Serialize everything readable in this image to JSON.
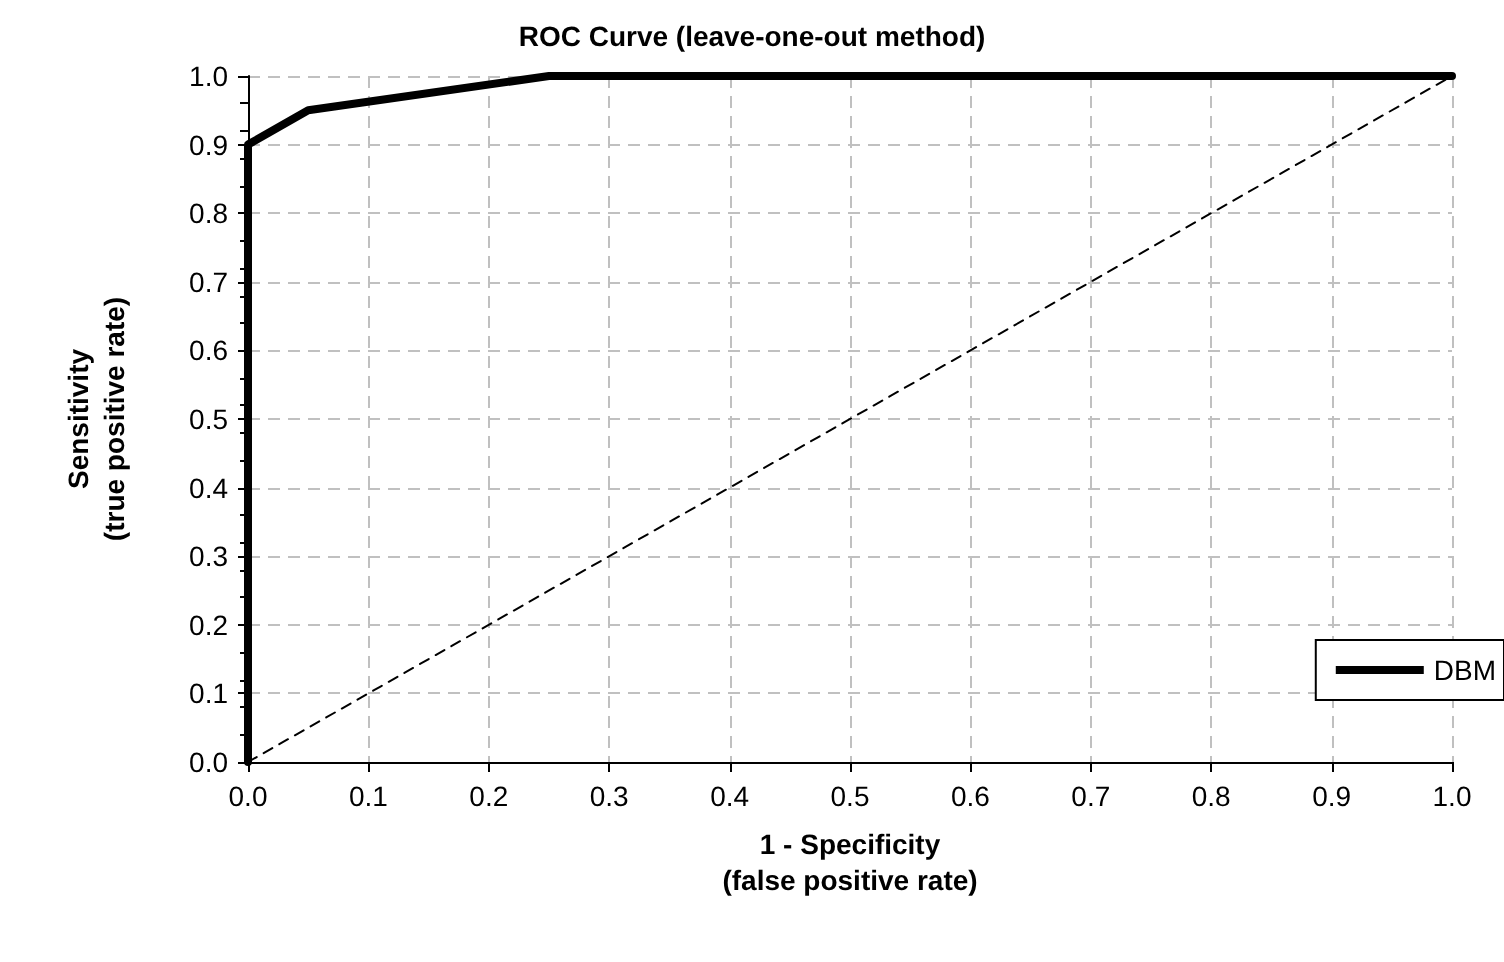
{
  "chart_data": {
    "type": "line",
    "title": "ROC Curve (leave-one-out method)",
    "xlabel": "1 - Specificity\n(false positive rate)",
    "ylabel": "Sensitivity\n(true positive rate)",
    "series": [
      {
        "name": "DBM",
        "color": "#000000",
        "x": [
          0,
          0,
          0.05,
          0.25,
          1
        ],
        "values": [
          0,
          0.9,
          0.95,
          1,
          1
        ]
      },
      {
        "color": "#000000",
        "x": [
          0,
          1
        ],
        "values": [
          0,
          1
        ],
        "line_style": "dashed"
      }
    ],
    "xlim": [
      0,
      1
    ],
    "ylim": [
      0,
      1
    ],
    "xticks": [
      {
        "value": 0,
        "label": "0.0"
      },
      0.1,
      0.2,
      0.3,
      0.4,
      0.5,
      0.6,
      0.7,
      0.8,
      0.9,
      {
        "value": 1,
        "label": "1.0"
      }
    ],
    "yticks": [
      {
        "value": 0,
        "label": "0.0"
      },
      0.1,
      0.2,
      0.3,
      0.4,
      0.5,
      0.6,
      0.7,
      0.8,
      0.9,
      {
        "value": 1,
        "label": "1.0"
      }
    ],
    "grid": true,
    "legend": "right",
    "marker": "none"
  }
}
